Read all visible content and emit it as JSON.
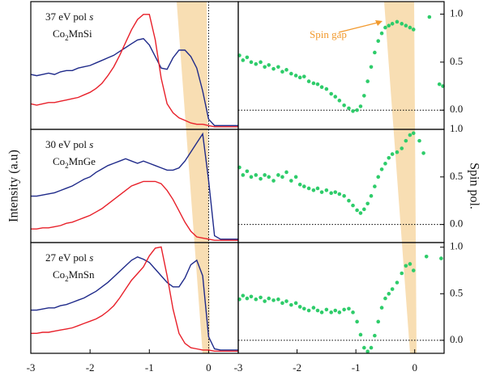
{
  "chart_data": [
    {
      "type": "line",
      "label": "37 eV pol s",
      "compound": "Co2MnSi",
      "xlim": [
        -3,
        0.5
      ],
      "ylim": [
        0,
        1
      ],
      "vline": 0,
      "x": [
        -3,
        -2.9,
        -2.8,
        -2.7,
        -2.6,
        -2.5,
        -2.4,
        -2.3,
        -2.2,
        -2.1,
        -2,
        -1.9,
        -1.8,
        -1.7,
        -1.6,
        -1.5,
        -1.4,
        -1.3,
        -1.2,
        -1.1,
        -1,
        -0.9,
        -0.8,
        -0.7,
        -0.6,
        -0.5,
        -0.4,
        -0.3,
        -0.2,
        -0.1,
        0,
        0.1,
        0.2,
        0.3,
        0.4,
        0.5
      ],
      "series": [
        {
          "color": "#1f2a8a",
          "values": [
            0.43,
            0.42,
            0.43,
            0.44,
            0.43,
            0.45,
            0.46,
            0.46,
            0.48,
            0.49,
            0.5,
            0.52,
            0.54,
            0.56,
            0.58,
            0.61,
            0.64,
            0.67,
            0.7,
            0.71,
            0.66,
            0.57,
            0.48,
            0.47,
            0.56,
            0.62,
            0.62,
            0.57,
            0.48,
            0.3,
            0.08,
            0.03,
            0.03,
            0.03,
            0.03,
            0.03
          ]
        },
        {
          "color": "#e8202a",
          "values": [
            0.2,
            0.19,
            0.2,
            0.21,
            0.21,
            0.22,
            0.23,
            0.24,
            0.25,
            0.27,
            0.29,
            0.32,
            0.36,
            0.42,
            0.49,
            0.58,
            0.68,
            0.78,
            0.86,
            0.9,
            0.9,
            0.7,
            0.4,
            0.2,
            0.13,
            0.09,
            0.07,
            0.05,
            0.04,
            0.04,
            0.03,
            0.02,
            0.02,
            0.02,
            0.02,
            0.02
          ]
        }
      ]
    },
    {
      "type": "scatter",
      "annotation": "Spin gap",
      "xlim": [
        -3,
        0.5
      ],
      "ylim": [
        -0.2,
        1.13
      ],
      "hline": 0,
      "yticks": [
        {
          "value": 0,
          "label": "0.0"
        },
        {
          "value": 0.5,
          "label": "0.5"
        },
        {
          "value": 1,
          "label": "1.0"
        }
      ],
      "x": [
        -2.98,
        -2.92,
        -2.85,
        -2.78,
        -2.7,
        -2.62,
        -2.55,
        -2.48,
        -2.4,
        -2.32,
        -2.25,
        -2.18,
        -2.1,
        -2.02,
        -1.95,
        -1.88,
        -1.8,
        -1.72,
        -1.65,
        -1.58,
        -1.5,
        -1.42,
        -1.35,
        -1.28,
        -1.2,
        -1.12,
        -1.05,
        -0.98,
        -0.92,
        -0.86,
        -0.8,
        -0.74,
        -0.68,
        -0.62,
        -0.56,
        -0.5,
        -0.44,
        -0.38,
        -0.3,
        -0.22,
        -0.15,
        -0.08,
        -0.02,
        0.25,
        0.42,
        0.48
      ],
      "series": [
        {
          "color": "#2ecc6a",
          "values": [
            0.57,
            0.52,
            0.55,
            0.5,
            0.48,
            0.5,
            0.45,
            0.47,
            0.43,
            0.45,
            0.4,
            0.42,
            0.38,
            0.36,
            0.34,
            0.35,
            0.3,
            0.28,
            0.27,
            0.24,
            0.22,
            0.17,
            0.14,
            0.1,
            0.05,
            0.02,
            -0.01,
            0,
            0.04,
            0.15,
            0.3,
            0.45,
            0.6,
            0.72,
            0.8,
            0.86,
            0.88,
            0.9,
            0.92,
            0.9,
            0.88,
            0.86,
            0.84,
            0.97,
            0.27,
            0.25
          ]
        }
      ]
    },
    {
      "type": "line",
      "label": "30 eV pol s",
      "compound": "Co2MnGe",
      "ylabel": "Intensity (a.u)",
      "xlim": [
        -3,
        0.5
      ],
      "ylim": [
        0,
        1
      ],
      "vline": 0,
      "x": [
        -3,
        -2.9,
        -2.8,
        -2.7,
        -2.6,
        -2.5,
        -2.4,
        -2.3,
        -2.2,
        -2.1,
        -2,
        -1.9,
        -1.8,
        -1.7,
        -1.6,
        -1.5,
        -1.4,
        -1.3,
        -1.2,
        -1.1,
        -1,
        -0.9,
        -0.8,
        -0.7,
        -0.6,
        -0.5,
        -0.4,
        -0.3,
        -0.2,
        -0.1,
        0,
        0.1,
        0.2,
        0.3,
        0.4,
        0.5
      ],
      "series": [
        {
          "color": "#1f2a8a",
          "values": [
            0.41,
            0.41,
            0.42,
            0.43,
            0.44,
            0.46,
            0.48,
            0.5,
            0.53,
            0.56,
            0.58,
            0.62,
            0.65,
            0.68,
            0.7,
            0.72,
            0.74,
            0.72,
            0.7,
            0.72,
            0.7,
            0.68,
            0.66,
            0.64,
            0.64,
            0.66,
            0.72,
            0.8,
            0.88,
            0.96,
            0.55,
            0.06,
            0.03,
            0.03,
            0.03,
            0.03
          ]
        },
        {
          "color": "#e8202a",
          "values": [
            0.12,
            0.12,
            0.13,
            0.13,
            0.14,
            0.15,
            0.17,
            0.18,
            0.2,
            0.22,
            0.24,
            0.27,
            0.3,
            0.34,
            0.38,
            0.42,
            0.46,
            0.5,
            0.52,
            0.54,
            0.54,
            0.54,
            0.52,
            0.46,
            0.38,
            0.28,
            0.18,
            0.1,
            0.05,
            0.04,
            0.03,
            0.02,
            0.02,
            0.02,
            0.02,
            0.02
          ]
        }
      ]
    },
    {
      "type": "scatter",
      "ylabel": "Spin pol.",
      "xlim": [
        -3,
        0.5
      ],
      "ylim": [
        -0.19,
        1.0
      ],
      "hline": 0,
      "yticks": [
        {
          "value": 0,
          "label": "0.0"
        },
        {
          "value": 0.5,
          "label": "0.5"
        },
        {
          "value": 1,
          "label": "1.0"
        }
      ],
      "x": [
        -2.98,
        -2.92,
        -2.85,
        -2.78,
        -2.7,
        -2.62,
        -2.55,
        -2.48,
        -2.4,
        -2.32,
        -2.25,
        -2.18,
        -2.1,
        -2.02,
        -1.95,
        -1.88,
        -1.8,
        -1.72,
        -1.65,
        -1.58,
        -1.5,
        -1.42,
        -1.35,
        -1.28,
        -1.2,
        -1.12,
        -1.05,
        -0.98,
        -0.92,
        -0.86,
        -0.8,
        -0.74,
        -0.68,
        -0.62,
        -0.56,
        -0.5,
        -0.44,
        -0.38,
        -0.3,
        -0.22,
        -0.15,
        -0.08,
        -0.02,
        0.08,
        0.15
      ],
      "series": [
        {
          "color": "#2ecc6a",
          "values": [
            0.6,
            0.52,
            0.56,
            0.5,
            0.52,
            0.48,
            0.52,
            0.5,
            0.46,
            0.52,
            0.5,
            0.55,
            0.46,
            0.5,
            0.42,
            0.4,
            0.38,
            0.36,
            0.38,
            0.34,
            0.36,
            0.33,
            0.34,
            0.32,
            0.3,
            0.25,
            0.2,
            0.15,
            0.12,
            0.16,
            0.22,
            0.3,
            0.4,
            0.5,
            0.58,
            0.64,
            0.7,
            0.74,
            0.76,
            0.8,
            0.88,
            0.94,
            0.96,
            0.88,
            0.75
          ]
        }
      ]
    },
    {
      "type": "line",
      "label": "27 eV pol s",
      "compound": "Co2MnSn",
      "xlim": [
        -3,
        0.5
      ],
      "ylim": [
        0,
        1
      ],
      "vline": 0,
      "xticks": [
        -3,
        -2,
        -1,
        0
      ],
      "x": [
        -3,
        -2.9,
        -2.8,
        -2.7,
        -2.6,
        -2.5,
        -2.4,
        -2.3,
        -2.2,
        -2.1,
        -2,
        -1.9,
        -1.8,
        -1.7,
        -1.6,
        -1.5,
        -1.4,
        -1.3,
        -1.2,
        -1.1,
        -1,
        -0.9,
        -0.8,
        -0.7,
        -0.6,
        -0.5,
        -0.4,
        -0.3,
        -0.2,
        -0.1,
        0,
        0.1,
        0.2,
        0.3,
        0.4,
        0.5
      ],
      "series": [
        {
          "color": "#1f2a8a",
          "values": [
            0.39,
            0.39,
            0.4,
            0.41,
            0.41,
            0.43,
            0.44,
            0.46,
            0.48,
            0.5,
            0.53,
            0.56,
            0.6,
            0.64,
            0.69,
            0.74,
            0.79,
            0.84,
            0.87,
            0.85,
            0.82,
            0.76,
            0.7,
            0.64,
            0.6,
            0.6,
            0.68,
            0.8,
            0.84,
            0.7,
            0.15,
            0.04,
            0.03,
            0.03,
            0.03,
            0.03
          ]
        },
        {
          "color": "#e8202a",
          "values": [
            0.18,
            0.18,
            0.19,
            0.19,
            0.2,
            0.21,
            0.22,
            0.23,
            0.25,
            0.27,
            0.29,
            0.31,
            0.34,
            0.38,
            0.43,
            0.5,
            0.58,
            0.66,
            0.72,
            0.78,
            0.88,
            0.95,
            0.96,
            0.7,
            0.4,
            0.18,
            0.09,
            0.05,
            0.04,
            0.03,
            0.03,
            0.02,
            0.02,
            0.02,
            0.02,
            0.02
          ]
        }
      ]
    },
    {
      "type": "scatter",
      "xlim": [
        -3,
        0.5
      ],
      "ylim": [
        -0.14,
        1.05
      ],
      "hline": 0,
      "xticks": [
        -3,
        -2,
        -1,
        0
      ],
      "yticks": [
        {
          "value": 0,
          "label": "0.0"
        },
        {
          "value": 0.5,
          "label": "0.5"
        },
        {
          "value": 1,
          "label": "1.0"
        }
      ],
      "x": [
        -2.98,
        -2.92,
        -2.85,
        -2.78,
        -2.7,
        -2.62,
        -2.55,
        -2.48,
        -2.4,
        -2.32,
        -2.25,
        -2.18,
        -2.1,
        -2.02,
        -1.95,
        -1.88,
        -1.8,
        -1.72,
        -1.65,
        -1.58,
        -1.5,
        -1.42,
        -1.35,
        -1.28,
        -1.2,
        -1.12,
        -1.05,
        -0.98,
        -0.92,
        -0.86,
        -0.8,
        -0.74,
        -0.68,
        -0.62,
        -0.56,
        -0.5,
        -0.44,
        -0.38,
        -0.3,
        -0.22,
        -0.15,
        -0.08,
        -0.02,
        0.2,
        0.45
      ],
      "series": [
        {
          "color": "#2ecc6a",
          "values": [
            0.44,
            0.48,
            0.45,
            0.47,
            0.44,
            0.46,
            0.42,
            0.45,
            0.43,
            0.44,
            0.4,
            0.42,
            0.38,
            0.4,
            0.36,
            0.34,
            0.32,
            0.35,
            0.32,
            0.3,
            0.33,
            0.3,
            0.32,
            0.3,
            0.33,
            0.34,
            0.3,
            0.2,
            0.06,
            -0.08,
            -0.12,
            -0.08,
            0.05,
            0.2,
            0.35,
            0.45,
            0.5,
            0.55,
            0.62,
            0.72,
            0.8,
            0.82,
            0.75,
            0.9,
            0.88
          ]
        }
      ]
    }
  ]
}
